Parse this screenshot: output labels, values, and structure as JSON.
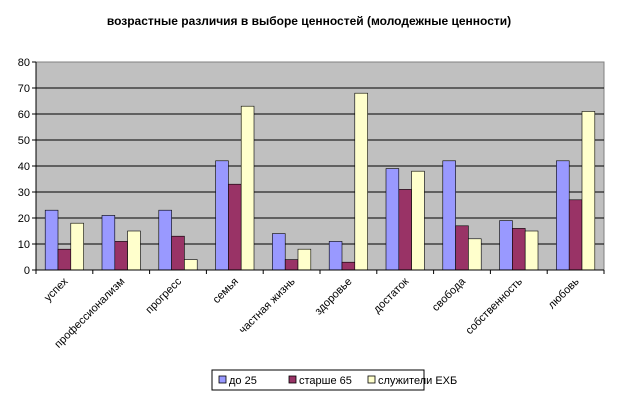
{
  "chart_data": {
    "type": "bar",
    "title": "возрастные различия в выборе ценностей (молодежные ценности)",
    "xlabel": "",
    "ylabel": "",
    "ylim": [
      0,
      80
    ],
    "yticks": [
      "0",
      "10",
      "20",
      "30",
      "40",
      "50",
      "60",
      "70",
      "80"
    ],
    "grid": true,
    "legend_position": "bottom",
    "plot_background": "#c0c0c0",
    "categories": [
      "успех",
      "профессионализм",
      "прогресс",
      "семья",
      "частная жизнь",
      "здоровье",
      "достаток",
      "свобода",
      "собственность",
      "любовь"
    ],
    "series": [
      {
        "name": "до 25",
        "color": "#9999ff",
        "values": [
          23,
          21,
          23,
          42,
          14,
          11,
          39,
          42,
          19,
          42
        ]
      },
      {
        "name": "старше 65",
        "color": "#993366",
        "values": [
          8,
          11,
          13,
          33,
          4,
          3,
          31,
          17,
          16,
          27
        ]
      },
      {
        "name": "служители ЕХБ",
        "color": "#ffffcc",
        "values": [
          18,
          15,
          4,
          63,
          8,
          68,
          38,
          12,
          15,
          61
        ]
      }
    ]
  }
}
